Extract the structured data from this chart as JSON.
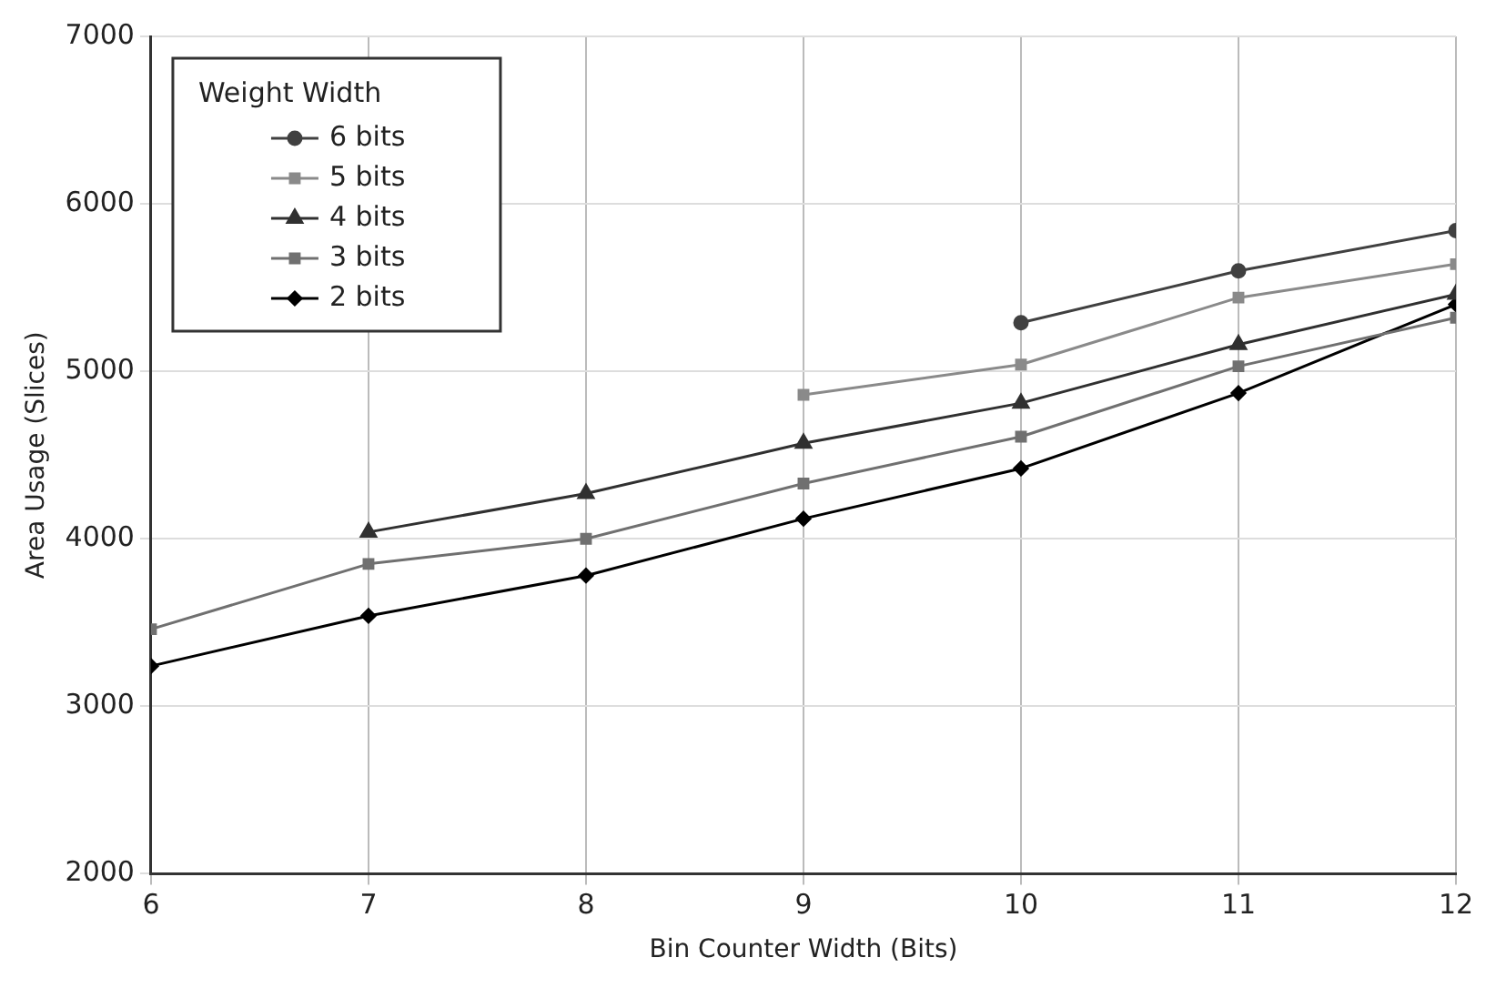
{
  "chart_data": {
    "type": "line",
    "xlabel": "Bin Counter Width (Bits)",
    "ylabel": "Area Usage (Slices)",
    "legend_title": "Weight Width",
    "x": [
      6,
      7,
      8,
      9,
      10,
      11,
      12
    ],
    "series": [
      {
        "name": "6 bits",
        "color": "#404040",
        "marker": "circle",
        "values": [
          null,
          null,
          null,
          null,
          5290,
          5600,
          5840
        ]
      },
      {
        "name": "5 bits",
        "color": "#8a8a8a",
        "marker": "square",
        "values": [
          null,
          null,
          null,
          4860,
          5040,
          5440,
          5640
        ]
      },
      {
        "name": "4 bits",
        "color": "#303030",
        "marker": "triangle",
        "values": [
          null,
          4040,
          4270,
          4570,
          4810,
          5160,
          5460
        ]
      },
      {
        "name": "3 bits",
        "color": "#707070",
        "marker": "square",
        "values": [
          3460,
          3850,
          4000,
          4330,
          4610,
          5030,
          5320
        ]
      },
      {
        "name": "2 bits",
        "color": "#000000",
        "marker": "diamond",
        "values": [
          3240,
          3540,
          3780,
          4120,
          4420,
          4870,
          5400
        ]
      }
    ],
    "xlim": [
      6,
      12
    ],
    "xticks": [
      6,
      7,
      8,
      9,
      10,
      11,
      12
    ],
    "ylim": [
      2000,
      7000
    ],
    "yticks": [
      2000,
      3000,
      4000,
      5000,
      6000,
      7000
    ],
    "grid": true,
    "legend": "top left",
    "line_style": "solid"
  }
}
